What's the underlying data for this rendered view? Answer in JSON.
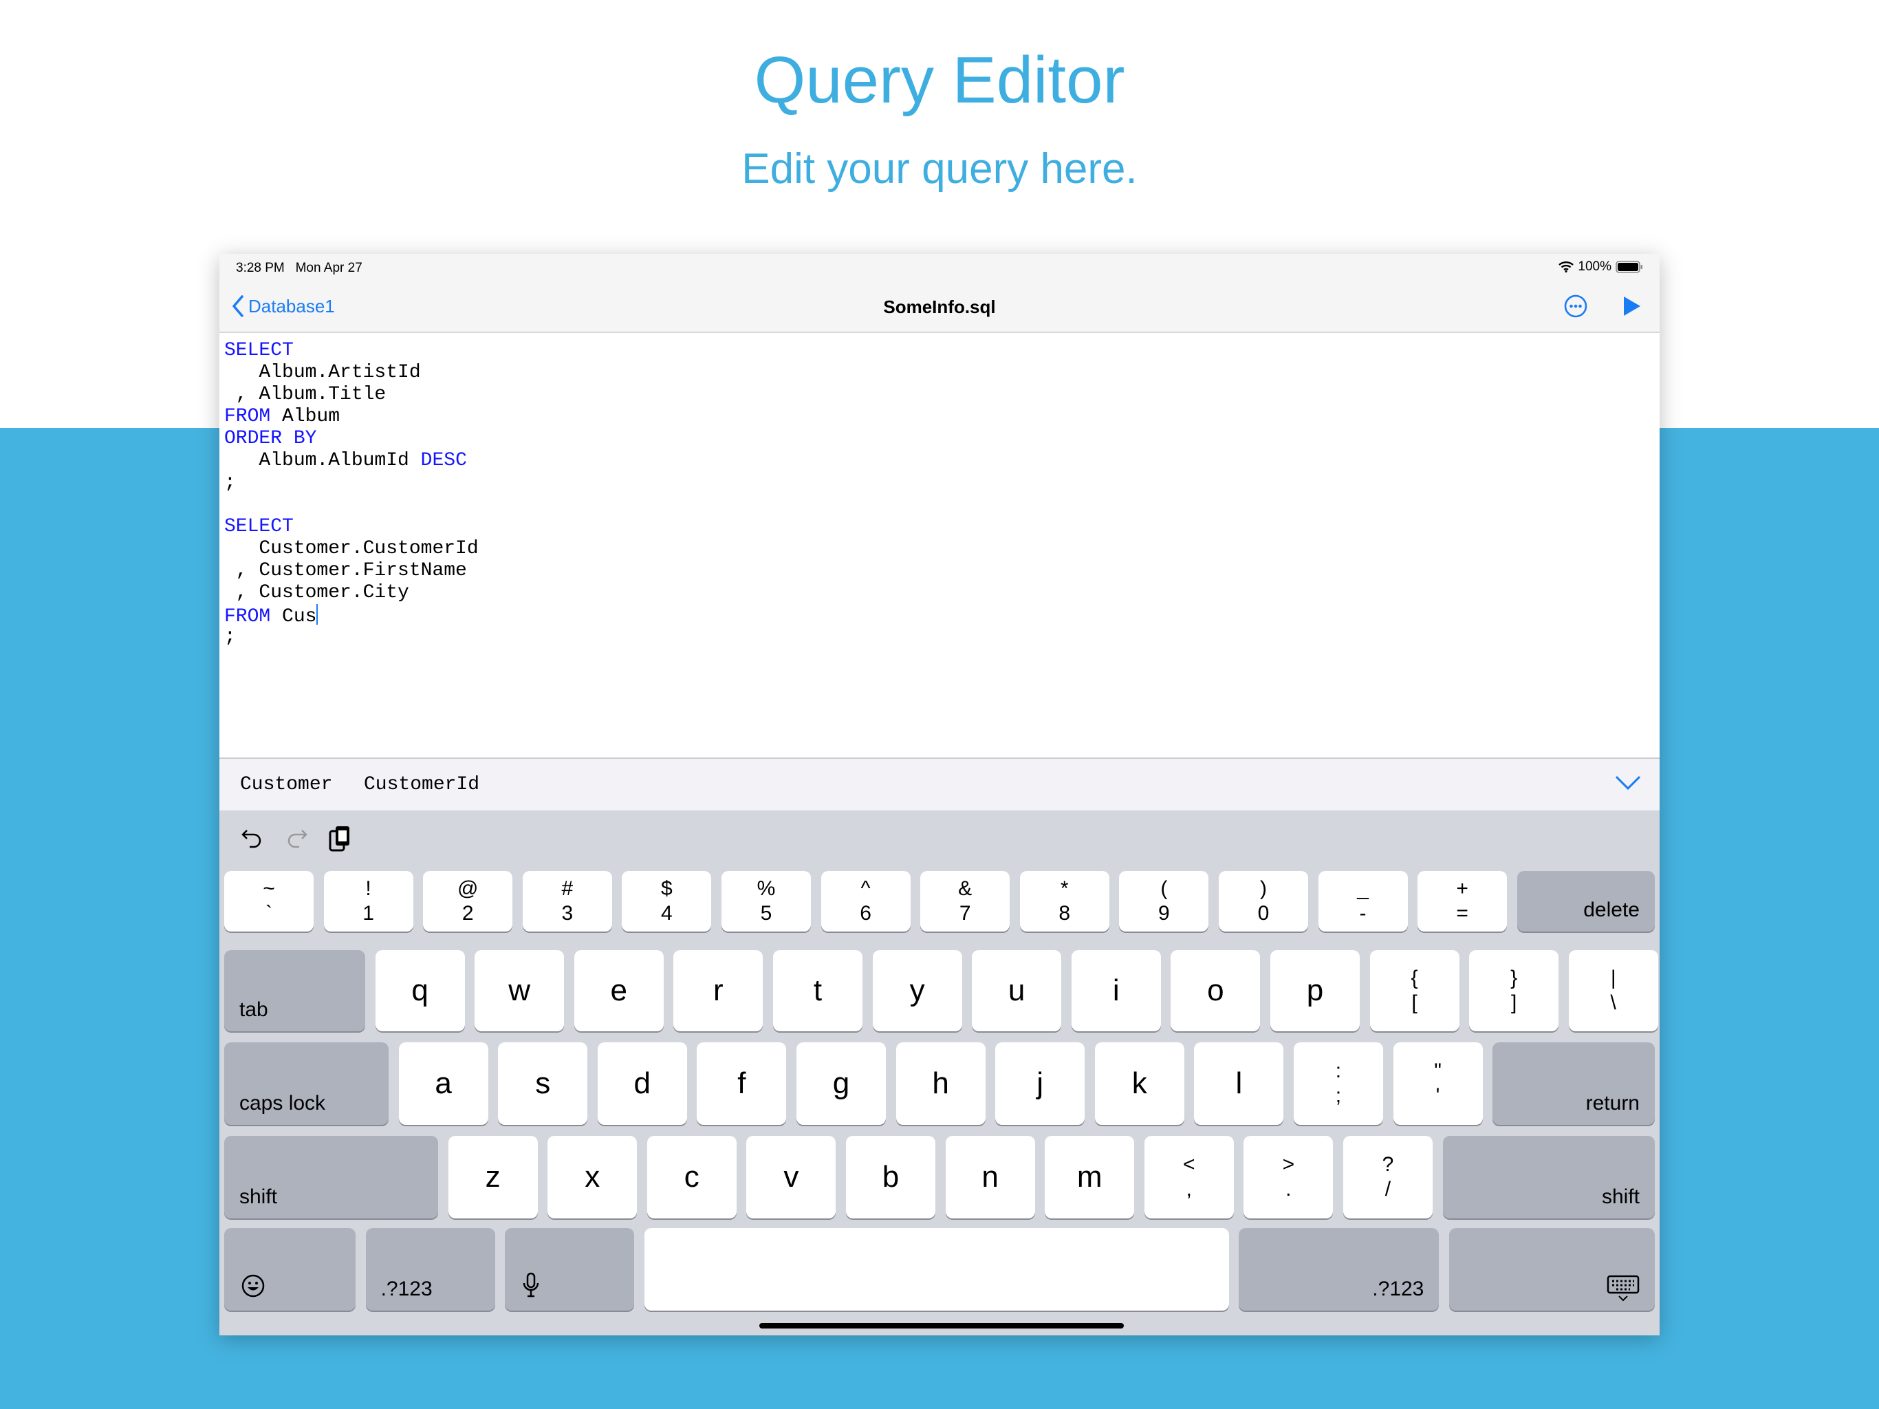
{
  "header": {
    "title": "Query Editor",
    "subtitle": "Edit your query here."
  },
  "colors": {
    "brand": "#45b3e0",
    "accent": "#1a7cf5",
    "keyword": "#1414ff"
  },
  "status": {
    "time": "3:28 PM",
    "date": "Mon Apr 27",
    "battery": "100%"
  },
  "nav": {
    "back_label": "Database1",
    "title": "SomeInfo.sql",
    "icons": [
      "ellipsis-circle-icon",
      "play-icon"
    ]
  },
  "editor": {
    "lines": [
      [
        {
          "k": 1,
          "t": "SELECT"
        }
      ],
      [
        {
          "k": 0,
          "t": "   Album.ArtistId"
        }
      ],
      [
        {
          "k": 0,
          "t": " , Album.Title"
        }
      ],
      [
        {
          "k": 1,
          "t": "FROM"
        },
        {
          "k": 0,
          "t": " Album"
        }
      ],
      [
        {
          "k": 1,
          "t": "ORDER BY"
        }
      ],
      [
        {
          "k": 0,
          "t": "   Album.AlbumId "
        },
        {
          "k": 1,
          "t": "DESC"
        }
      ],
      [
        {
          "k": 0,
          "t": ";"
        }
      ],
      [],
      [
        {
          "k": 1,
          "t": "SELECT"
        }
      ],
      [
        {
          "k": 0,
          "t": "   Customer.CustomerId"
        }
      ],
      [
        {
          "k": 0,
          "t": " , Customer.FirstName"
        }
      ],
      [
        {
          "k": 0,
          "t": " , Customer.City"
        }
      ],
      [
        {
          "k": 1,
          "t": "FROM"
        },
        {
          "k": 0,
          "t": " Cus"
        }
      ],
      [
        {
          "k": 0,
          "t": ";"
        }
      ]
    ]
  },
  "suggestions": [
    "Customer",
    "CustomerId"
  ],
  "keyboard": {
    "row1": [
      [
        "~",
        "`"
      ],
      [
        "!",
        "1"
      ],
      [
        "@",
        "2"
      ],
      [
        "#",
        "3"
      ],
      [
        "$",
        "4"
      ],
      [
        "%",
        "5"
      ],
      [
        "^",
        "6"
      ],
      [
        "&",
        "7"
      ],
      [
        "*",
        "8"
      ],
      [
        "(",
        "9"
      ],
      [
        ")",
        "0"
      ],
      [
        "_",
        "-"
      ],
      [
        "+",
        "="
      ]
    ],
    "delete": "delete",
    "tab": "tab",
    "row2": [
      [
        "q"
      ],
      [
        "w"
      ],
      [
        "e"
      ],
      [
        "r"
      ],
      [
        "t"
      ],
      [
        "y"
      ],
      [
        "u"
      ],
      [
        "i"
      ],
      [
        "o"
      ],
      [
        "p"
      ],
      [
        "{",
        "["
      ],
      [
        "}",
        "]"
      ],
      [
        "|",
        "\\"
      ]
    ],
    "caps": "caps lock",
    "row3": [
      [
        "a"
      ],
      [
        "s"
      ],
      [
        "d"
      ],
      [
        "f"
      ],
      [
        "g"
      ],
      [
        "h"
      ],
      [
        "j"
      ],
      [
        "k"
      ],
      [
        "l"
      ],
      [
        ":",
        ";"
      ],
      [
        "\"",
        "'"
      ]
    ],
    "return": "return",
    "shift": "shift",
    "row4": [
      [
        "z"
      ],
      [
        "x"
      ],
      [
        "c"
      ],
      [
        "v"
      ],
      [
        "b"
      ],
      [
        "n"
      ],
      [
        "m"
      ],
      [
        "<",
        ","
      ],
      [
        ">",
        "."
      ],
      [
        "?",
        "/"
      ]
    ],
    "numbers": ".?123"
  }
}
